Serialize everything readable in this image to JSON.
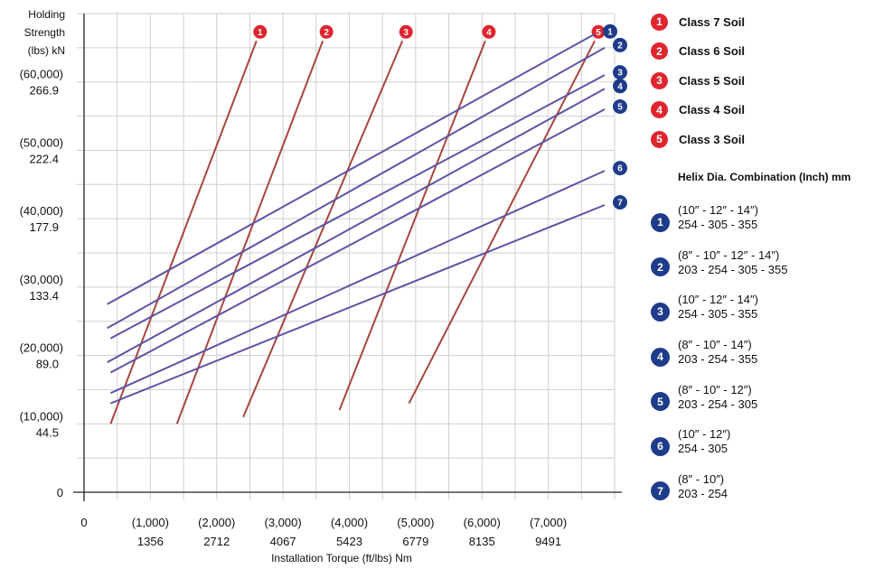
{
  "chart_data": {
    "type": "line",
    "xlabel": "Installation Torque (ft/lbs) Nm",
    "ylabel_lines": [
      "Holding",
      "Strength",
      "(lbs) kN"
    ],
    "x_ticks": [
      {
        "value": 0,
        "top": "0",
        "bottom": ""
      },
      {
        "value": 1000,
        "top": "(1,000)",
        "bottom": "1356"
      },
      {
        "value": 2000,
        "top": "(2,000)",
        "bottom": "2712"
      },
      {
        "value": 3000,
        "top": "(3,000)",
        "bottom": "4067"
      },
      {
        "value": 4000,
        "top": "(4,000)",
        "bottom": "5423"
      },
      {
        "value": 5000,
        "top": "(5,000)",
        "bottom": "6779"
      },
      {
        "value": 6000,
        "top": "(6,000)",
        "bottom": "8135"
      },
      {
        "value": 7000,
        "top": "(7,000)",
        "bottom": "9491"
      }
    ],
    "y_ticks": [
      {
        "value": 0,
        "top": "0",
        "bottom": ""
      },
      {
        "value": 10000,
        "top": "(10,000)",
        "bottom": "44.5"
      },
      {
        "value": 20000,
        "top": "(20,000)",
        "bottom": "89.0"
      },
      {
        "value": 30000,
        "top": "(30,000)",
        "bottom": "133.4"
      },
      {
        "value": 40000,
        "top": "(40,000)",
        "bottom": "177.9"
      },
      {
        "value": 50000,
        "top": "(50,000)",
        "bottom": "222.4"
      },
      {
        "value": 60000,
        "top": "(60,000)",
        "bottom": "266.9"
      }
    ],
    "xlim": [
      0,
      8000
    ],
    "ylim": [
      0,
      70000
    ],
    "grid": true,
    "soil_series": [
      {
        "name": "Class 7 Soil",
        "badge": "1",
        "points": [
          [
            400,
            10000
          ],
          [
            2600,
            66000
          ]
        ]
      },
      {
        "name": "Class 6 Soil",
        "badge": "2",
        "points": [
          [
            1400,
            10000
          ],
          [
            3600,
            66000
          ]
        ]
      },
      {
        "name": "Class 5 Soil",
        "badge": "3",
        "points": [
          [
            2400,
            11000
          ],
          [
            4800,
            66000
          ]
        ]
      },
      {
        "name": "Class 4 Soil",
        "badge": "4",
        "points": [
          [
            3850,
            12000
          ],
          [
            6050,
            66000
          ]
        ]
      },
      {
        "name": "Class 3 Soil",
        "badge": "5",
        "points": [
          [
            4900,
            13000
          ],
          [
            7700,
            66000
          ]
        ]
      }
    ],
    "helix_series": [
      {
        "name": "(10″ - 12″ - 14″) 254 - 305 - 355",
        "badge": "1",
        "points": [
          [
            350,
            27500
          ],
          [
            7700,
            67000
          ]
        ]
      },
      {
        "name": "(8″ - 10″ - 12″ - 14″) 203 - 254 - 305 - 355",
        "badge": "2",
        "points": [
          [
            350,
            24000
          ],
          [
            7850,
            65000
          ]
        ]
      },
      {
        "name": "(10″ - 12″ - 14″) 254 - 305 - 355",
        "badge": "3",
        "points": [
          [
            400,
            22500
          ],
          [
            7850,
            61000
          ]
        ]
      },
      {
        "name": "(8″ - 10″ - 14″) 203 - 254 - 355",
        "badge": "4",
        "points": [
          [
            350,
            19000
          ],
          [
            7850,
            59000
          ]
        ]
      },
      {
        "name": "(8″ - 10″ - 12″) 203 - 254 - 305",
        "badge": "5",
        "points": [
          [
            400,
            17500
          ],
          [
            7850,
            56000
          ]
        ]
      },
      {
        "name": "(10″ - 12″) 254 - 305",
        "badge": "6",
        "points": [
          [
            400,
            14500
          ],
          [
            7850,
            47000
          ]
        ]
      },
      {
        "name": "(8″ - 10″) 203 - 254",
        "badge": "7",
        "points": [
          [
            400,
            13000
          ],
          [
            7850,
            42000
          ]
        ]
      }
    ]
  },
  "legend": {
    "soil": [
      {
        "badge": "1",
        "label": "Class 7 Soil"
      },
      {
        "badge": "2",
        "label": "Class 6 Soil"
      },
      {
        "badge": "3",
        "label": "Class 5 Soil"
      },
      {
        "badge": "4",
        "label": "Class 4 Soil"
      },
      {
        "badge": "5",
        "label": "Class 3 Soil"
      }
    ],
    "helix_title": "Helix Dia. Combination (Inch) mm",
    "helix": [
      {
        "badge": "1",
        "line1": "(10″ - 12″ - 14″)",
        "line2": "254 - 305 - 355"
      },
      {
        "badge": "2",
        "line1": "(8″ - 10″ - 12″ - 14″)",
        "line2": "203 - 254 - 305 - 355"
      },
      {
        "badge": "3",
        "line1": "(10″ - 12″ - 14″)",
        "line2": "254 - 305 - 355"
      },
      {
        "badge": "4",
        "line1": "(8″ - 10″ - 14″)",
        "line2": "203 - 254 - 355"
      },
      {
        "badge": "5",
        "line1": "(8″ - 10″ - 12″)",
        "line2": "203 - 254 - 305"
      },
      {
        "badge": "6",
        "line1": "(10″ - 12″)",
        "line2": "254 - 305"
      },
      {
        "badge": "7",
        "line1": "(8″ - 10″)",
        "line2": "203 - 254"
      }
    ]
  },
  "colors": {
    "soil": "#a8453f",
    "soil_badge": "#e0252f",
    "helix": "#5a55a6",
    "helix_badge": "#1f3c8a",
    "grid": "#cfcfcf"
  }
}
